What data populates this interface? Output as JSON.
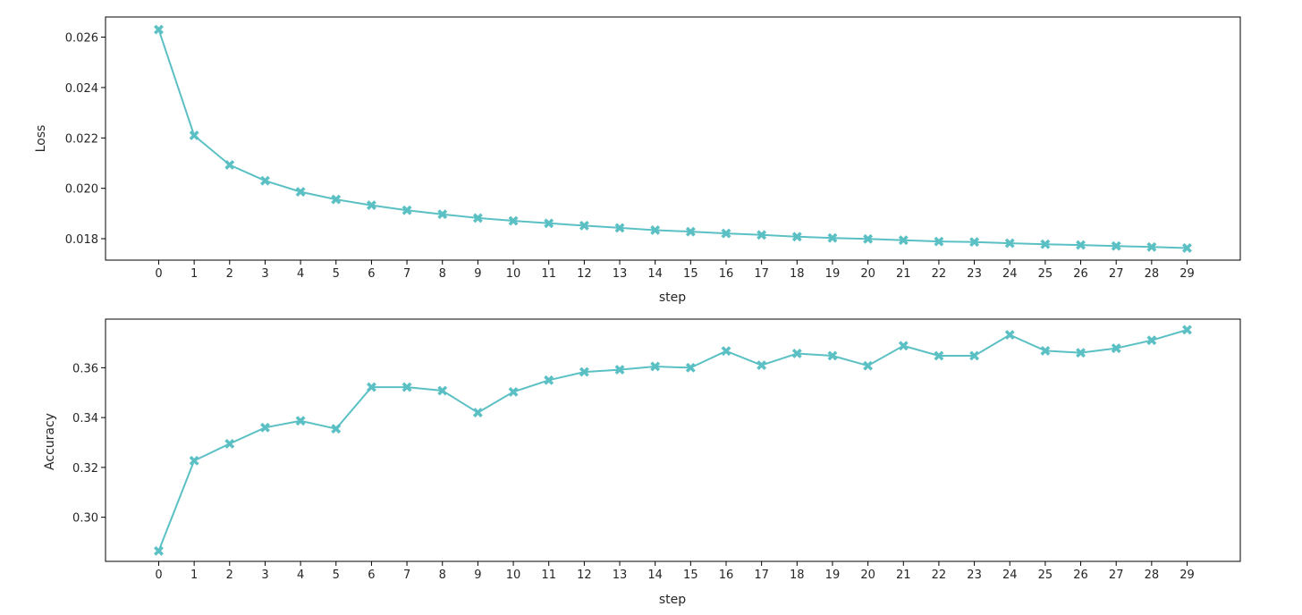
{
  "chart_data": [
    {
      "type": "line",
      "title": "",
      "xlabel": "step",
      "ylabel": "Loss",
      "x": [
        0,
        1,
        2,
        3,
        4,
        5,
        6,
        7,
        8,
        9,
        10,
        11,
        12,
        13,
        14,
        15,
        16,
        17,
        18,
        19,
        20,
        21,
        22,
        23,
        24,
        25,
        26,
        27,
        28,
        29
      ],
      "series": [
        {
          "values": [
            0.0263,
            0.0221,
            0.02093,
            0.0203,
            0.01986,
            0.01956,
            0.01933,
            0.01913,
            0.01897,
            0.01882,
            0.01871,
            0.01861,
            0.01852,
            0.01843,
            0.01834,
            0.01828,
            0.01821,
            0.01815,
            0.01808,
            0.01803,
            0.01799,
            0.01794,
            0.01789,
            0.01787,
            0.01782,
            0.01778,
            0.01775,
            0.01771,
            0.01767,
            0.01763
          ],
          "color": "#5bc0c4",
          "marker": "X"
        }
      ],
      "ylim": [
        0.01715,
        0.0268
      ],
      "yticks": [
        "0.018",
        "0.020",
        "0.022",
        "0.024",
        "0.026"
      ],
      "grid": false
    },
    {
      "type": "line",
      "title": "",
      "xlabel": "step",
      "ylabel": "Accuracy",
      "x": [
        0,
        1,
        2,
        3,
        4,
        5,
        6,
        7,
        8,
        9,
        10,
        11,
        12,
        13,
        14,
        15,
        16,
        17,
        18,
        19,
        20,
        21,
        22,
        23,
        24,
        25,
        26,
        27,
        28,
        29
      ],
      "series": [
        {
          "values": [
            0.2865,
            0.3227,
            0.3295,
            0.336,
            0.3387,
            0.3355,
            0.3522,
            0.3522,
            0.3508,
            0.342,
            0.3503,
            0.355,
            0.3583,
            0.3592,
            0.3605,
            0.36,
            0.3667,
            0.361,
            0.3657,
            0.3648,
            0.3608,
            0.3688,
            0.3648,
            0.3648,
            0.3732,
            0.3668,
            0.366,
            0.3678,
            0.371,
            0.3752
          ],
          "color": "#5bc0c4",
          "marker": "X"
        }
      ],
      "ylim": [
        0.2823,
        0.3795
      ],
      "yticks": [
        "0.30",
        "0.32",
        "0.34",
        "0.36"
      ],
      "grid": false
    }
  ]
}
